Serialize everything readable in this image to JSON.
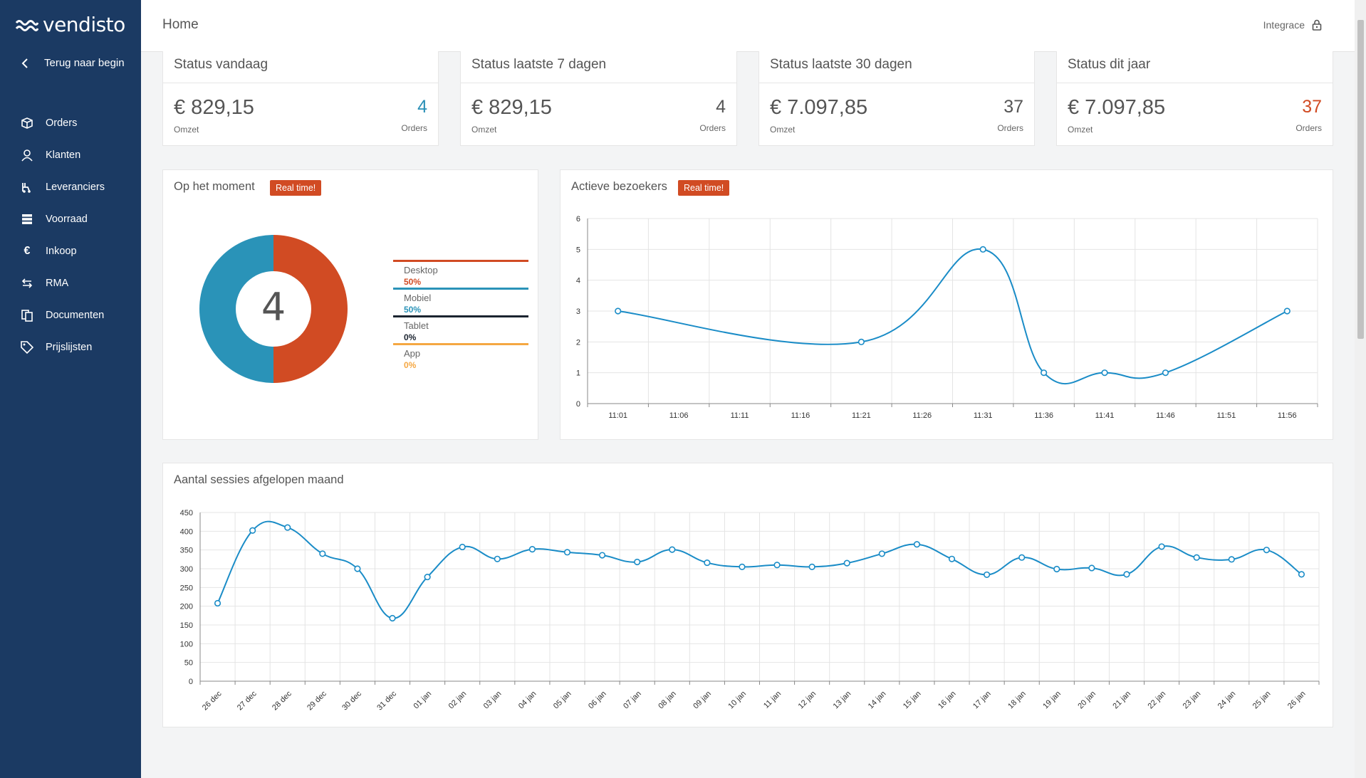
{
  "brand": {
    "name": "vendisto"
  },
  "sidebar": {
    "back_label": "Terug naar begin",
    "items": [
      {
        "label": "Orders",
        "icon": "box-icon"
      },
      {
        "label": "Klanten",
        "icon": "user-icon"
      },
      {
        "label": "Leveranciers",
        "icon": "forklift-icon"
      },
      {
        "label": "Voorraad",
        "icon": "stack-icon"
      },
      {
        "label": "Inkoop",
        "icon": "euro-icon"
      },
      {
        "label": "RMA",
        "icon": "return-arrows-icon"
      },
      {
        "label": "Documenten",
        "icon": "documents-icon"
      },
      {
        "label": "Prijslijsten",
        "icon": "price-tag-icon"
      }
    ]
  },
  "header": {
    "title": "Home",
    "integrace_label": "Integrace"
  },
  "stats": [
    {
      "title": "Status vandaag",
      "amount": "€ 829,15",
      "amount_label": "Omzet",
      "count": "4",
      "count_label": "Orders",
      "count_color": "#2a8fb6"
    },
    {
      "title": "Status laatste 7 dagen",
      "amount": "€ 829,15",
      "amount_label": "Omzet",
      "count": "4",
      "count_label": "Orders",
      "count_color": "#555555"
    },
    {
      "title": "Status laatste 30 dagen",
      "amount": "€ 7.097,85",
      "amount_label": "Omzet",
      "count": "37",
      "count_label": "Orders",
      "count_color": "#555555"
    },
    {
      "title": "Status dit jaar",
      "amount": "€ 7.097,85",
      "amount_label": "Omzet",
      "count": "37",
      "count_label": "Orders",
      "count_color": "#d14b23"
    }
  ],
  "moment": {
    "title": "Op het moment",
    "badge": "Real time!",
    "center_value": "4"
  },
  "visitors": {
    "title": "Actieve bezoekers",
    "badge": "Real time!"
  },
  "sessions": {
    "title": "Aantal sessies afgelopen maand"
  },
  "colors": {
    "accent": "#d14b23",
    "series": "#1a8cc7",
    "sidebar": "#1b3a63"
  },
  "chart_data": [
    {
      "type": "pie",
      "categories": [
        "Desktop",
        "Mobiel",
        "Tablet",
        "App"
      ],
      "values": [
        50,
        50,
        0,
        0
      ],
      "labels": [
        "50%",
        "50%",
        "0%",
        "0%"
      ],
      "colors": [
        "#d14b23",
        "#2a93b8",
        "#1b2430",
        "#f5a742"
      ],
      "legend": "right"
    },
    {
      "type": "line",
      "categories": [
        "11:01",
        "11:06",
        "11:11",
        "11:16",
        "11:21",
        "11:26",
        "11:31",
        "11:36",
        "11:41",
        "11:46",
        "11:51",
        "11:56"
      ],
      "points": [
        {
          "x": "11:01",
          "y": 3
        },
        {
          "x": "11:21",
          "y": 2
        },
        {
          "x": "11:31",
          "y": 5
        },
        {
          "x": "11:36",
          "y": 1
        },
        {
          "x": "11:41",
          "y": 1
        },
        {
          "x": "11:46",
          "y": 1
        },
        {
          "x": "11:56",
          "y": 3
        }
      ],
      "ylim": [
        0,
        6
      ],
      "yticks": [
        0,
        1,
        2,
        3,
        4,
        5,
        6
      ],
      "grid": true
    },
    {
      "type": "line",
      "categories": [
        "26 dec",
        "27 dec",
        "28 dec",
        "29 dec",
        "30 dec",
        "31 dec",
        "01 jan",
        "02 jan",
        "03 jan",
        "04 jan",
        "05 jan",
        "06 jan",
        "07 jan",
        "08 jan",
        "09 jan",
        "10 jan",
        "11 jan",
        "12 jan",
        "13 jan",
        "14 jan",
        "15 jan",
        "16 jan",
        "17 jan",
        "18 jan",
        "19 jan",
        "20 jan",
        "21 jan",
        "22 jan",
        "23 jan",
        "24 jan",
        "25 jan",
        "26 jan"
      ],
      "values": [
        208,
        402,
        410,
        340,
        300,
        168,
        278,
        358,
        326,
        352,
        344,
        336,
        318,
        351,
        316,
        305,
        310,
        305,
        315,
        340,
        365,
        326,
        284,
        330,
        299,
        302,
        285,
        359,
        330,
        325,
        350,
        285
      ],
      "ylim": [
        0,
        450
      ],
      "yticks": [
        0,
        50,
        100,
        150,
        200,
        250,
        300,
        350,
        400,
        450
      ],
      "grid": true
    }
  ]
}
